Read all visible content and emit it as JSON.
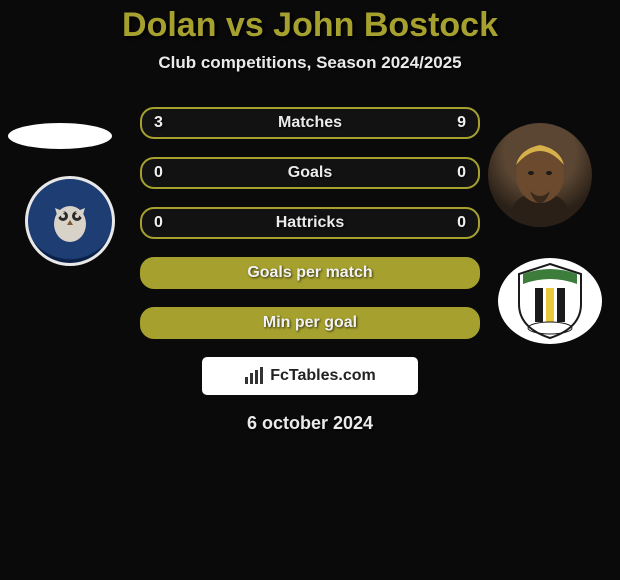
{
  "title": {
    "text": "Dolan vs John Bostock",
    "color": "#a6a12e"
  },
  "subtitle": "Club competitions, Season 2024/2025",
  "bars": [
    {
      "label": "Matches",
      "left": "3",
      "right": "9",
      "bg": "#121212",
      "border": "#a6a12e",
      "textColor": "#eaeaea"
    },
    {
      "label": "Goals",
      "left": "0",
      "right": "0",
      "bg": "#121212",
      "border": "#a6a12e",
      "textColor": "#eaeaea"
    },
    {
      "label": "Hattricks",
      "left": "0",
      "right": "0",
      "bg": "#121212",
      "border": "#a6a12e",
      "textColor": "#eaeaea"
    },
    {
      "label": "Goals per match",
      "left": "",
      "right": "",
      "bg": "#a6a12e",
      "border": "#a6a12e",
      "textColor": "#f2f2f2"
    },
    {
      "label": "Min per goal",
      "left": "",
      "right": "",
      "bg": "#a6a12e",
      "border": "#a6a12e",
      "textColor": "#f2f2f2"
    }
  ],
  "brand": {
    "label": "FcTables.com",
    "bg": "#ffffff",
    "textColor": "#222222",
    "iconColor": "#333333"
  },
  "date": "6 october 2024",
  "left_players": {
    "avatar_bg": "#ffffff",
    "club_name": "oldham-athletic",
    "club_colors": {
      "ring": "#e8e8e8",
      "inner_dark": "#0b2046",
      "inner_blue": "#1d3d73",
      "owl": "#d8d2c8"
    }
  },
  "right_players": {
    "avatar_skin": "#6b4a2e",
    "avatar_hair": "#d6b04a",
    "club_name": "solihull-moors",
    "club_colors": {
      "bg": "#ffffff",
      "stripe1": "#1a1a1a",
      "stripe2": "#e9c83b",
      "top": "#3c7d3c"
    }
  },
  "page_bg": "#0a0a0a"
}
